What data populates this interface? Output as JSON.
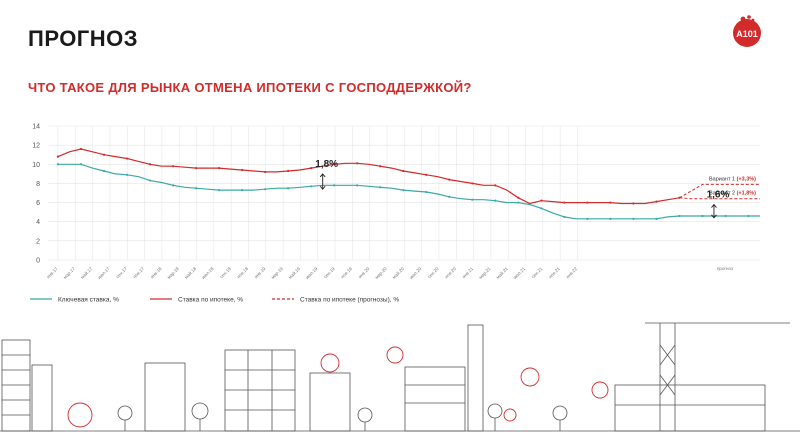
{
  "page": {
    "title": "ПРОГНОЗ",
    "subtitle": "ЧТО ТАКОЕ ДЛЯ РЫНКА ОТМЕНА ИПОТЕКИ С ГОСПОДДЕРЖКОЙ?",
    "logo_text": "A101"
  },
  "colors": {
    "accent": "#d32a2a",
    "key_rate": "#3aa9a8",
    "mortgage": "#d32a2a",
    "grid": "#e3e3e3",
    "city_line": "#555555"
  },
  "chart_data": {
    "type": "line",
    "title": "",
    "xlabel": "",
    "ylabel": "",
    "ylim": [
      0,
      14
    ],
    "yticks": [
      0,
      2,
      4,
      6,
      8,
      10,
      12,
      14
    ],
    "grid": true,
    "legend_position": "bottom",
    "x_labels": [
      "янв.17",
      "мар.17",
      "май.17",
      "июл.17",
      "сен.17",
      "ноя.17",
      "янв.18",
      "мар.18",
      "май.18",
      "июл.18",
      "сен.18",
      "ноя.18",
      "янв.19",
      "мар.19",
      "май.19",
      "июл.19",
      "сен.19",
      "ноя.19",
      "янв.20",
      "мар.20",
      "май.20",
      "июл.20",
      "сен.20",
      "ноя.20",
      "янв.21",
      "мар.21",
      "май.21",
      "июл.21",
      "сен.21",
      "ноя.21",
      "янв.22"
    ],
    "x_label_rotation": -45,
    "x_last_label": "прогноз",
    "series": [
      {
        "name": "Ключевая ставка, %",
        "color": "#3aa9a8",
        "style": "solid",
        "values": [
          10.0,
          10.0,
          10.0,
          9.6,
          9.3,
          9.0,
          8.9,
          8.7,
          8.3,
          8.1,
          7.8,
          7.6,
          7.5,
          7.4,
          7.3,
          7.3,
          7.3,
          7.3,
          7.4,
          7.5,
          7.5,
          7.6,
          7.7,
          7.8,
          7.8,
          7.8,
          7.8,
          7.7,
          7.6,
          7.5,
          7.3,
          7.2,
          7.1,
          6.9,
          6.6,
          6.4,
          6.3,
          6.3,
          6.2,
          6.0,
          6.0,
          5.8,
          5.4,
          4.9,
          4.5,
          4.3,
          4.3,
          4.3,
          4.3,
          4.3,
          4.3,
          4.3,
          4.3,
          4.5,
          4.6,
          4.6,
          4.6,
          4.6,
          4.6,
          4.6,
          4.6,
          4.6
        ]
      },
      {
        "name": "Ставка по ипотеке, %",
        "color": "#d32a2a",
        "style": "solid",
        "values": [
          10.8,
          11.3,
          11.6,
          11.3,
          11.0,
          10.8,
          10.6,
          10.3,
          10.0,
          9.8,
          9.8,
          9.7,
          9.6,
          9.6,
          9.6,
          9.5,
          9.4,
          9.3,
          9.2,
          9.2,
          9.3,
          9.4,
          9.6,
          9.8,
          10.0,
          10.1,
          10.1,
          10.0,
          9.8,
          9.6,
          9.3,
          9.1,
          8.9,
          8.7,
          8.4,
          8.2,
          8.0,
          7.8,
          7.8,
          7.3,
          6.5,
          5.9,
          6.2,
          6.1,
          6.0,
          6.0,
          6.0,
          6.0,
          6.0,
          5.9,
          5.9,
          5.9,
          6.1,
          6.3,
          6.5
        ]
      },
      {
        "name": "Ставка по ипотеке (прогнозы), %",
        "color": "#d32a2a",
        "style": "dashed",
        "variants": [
          {
            "label": "Вариант 1",
            "delta": "(+3,3%)",
            "values_from_index": 54,
            "values": [
              6.5,
              7.2,
              7.9,
              7.9,
              7.9,
              7.9,
              7.9,
              7.9
            ]
          },
          {
            "label": "Вариант 2",
            "delta": "(+1,8%)",
            "values_from_index": 54,
            "values": [
              6.5,
              6.4,
              6.4,
              6.4,
              6.4,
              6.4,
              6.4,
              6.4
            ]
          }
        ]
      }
    ],
    "annotations": [
      {
        "text": "1,8%",
        "x_index": 23,
        "from": 7.3,
        "to": 9.1
      },
      {
        "text": "1,6%",
        "x_index": 57,
        "from": 4.3,
        "to": 5.9
      }
    ]
  }
}
